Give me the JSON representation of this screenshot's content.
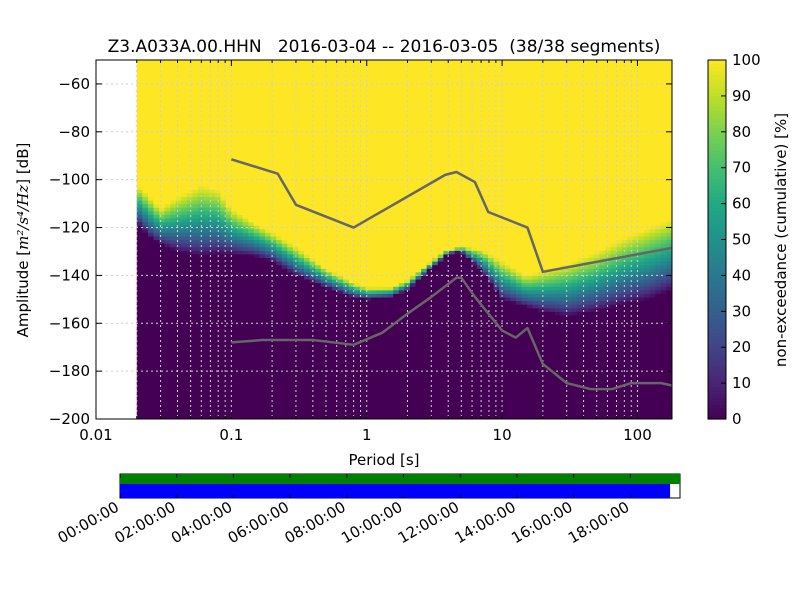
{
  "chart_data": {
    "type": "heatmap",
    "title": "Z3.A033A.00.HHN   2016-03-04 -- 2016-03-05  (38/38 segments)",
    "xlabel": "Period [s]",
    "ylabel_prefix": "Amplitude [",
    "ylabel_math": "m²/s⁴/Hz",
    "ylabel_suffix": "] [dB]",
    "x_scale": "log",
    "xlim": [
      0.01,
      180
    ],
    "ylim": [
      -200,
      -50
    ],
    "x_ticks": [
      {
        "value": 0.01,
        "label": "0.01"
      },
      {
        "value": 0.1,
        "label": "0.1"
      },
      {
        "value": 1,
        "label": "1"
      },
      {
        "value": 10,
        "label": "10"
      },
      {
        "value": 100,
        "label": "100"
      }
    ],
    "y_ticks": [
      {
        "value": -60,
        "label": "−60"
      },
      {
        "value": -80,
        "label": "−80"
      },
      {
        "value": -100,
        "label": "−100"
      },
      {
        "value": -120,
        "label": "−120"
      },
      {
        "value": -140,
        "label": "−140"
      },
      {
        "value": -160,
        "label": "−160"
      },
      {
        "value": -180,
        "label": "−180"
      },
      {
        "value": -200,
        "label": "−200"
      }
    ],
    "grid": true,
    "data_period_start": 0.02,
    "colorbar": {
      "label": "non-exceedance (cumulative) [%]",
      "range": [
        0,
        100
      ],
      "ticks": [
        {
          "value": 0,
          "label": "0"
        },
        {
          "value": 10,
          "label": "10"
        },
        {
          "value": 20,
          "label": "20"
        },
        {
          "value": 30,
          "label": "30"
        },
        {
          "value": 40,
          "label": "40"
        },
        {
          "value": 50,
          "label": "50"
        },
        {
          "value": 60,
          "label": "60"
        },
        {
          "value": 70,
          "label": "70"
        },
        {
          "value": 80,
          "label": "80"
        },
        {
          "value": 90,
          "label": "90"
        },
        {
          "value": 100,
          "label": "100"
        }
      ],
      "colors": [
        "#440154",
        "#482475",
        "#414487",
        "#355f8d",
        "#2a788e",
        "#21918c",
        "#22a884",
        "#44bf70",
        "#7ad151",
        "#bddf26",
        "#fde725"
      ]
    },
    "psd_bounds": [
      {
        "x": 0.02,
        "low": -118,
        "high": -102
      },
      {
        "x": 0.025,
        "low": -124,
        "high": -107
      },
      {
        "x": 0.03,
        "low": -127,
        "high": -112
      },
      {
        "x": 0.04,
        "low": -130,
        "high": -107
      },
      {
        "x": 0.06,
        "low": -132,
        "high": -102
      },
      {
        "x": 0.08,
        "low": -131,
        "high": -104
      },
      {
        "x": 0.1,
        "low": -131,
        "high": -112
      },
      {
        "x": 0.15,
        "low": -132,
        "high": -118
      },
      {
        "x": 0.2,
        "low": -134,
        "high": -122
      },
      {
        "x": 0.3,
        "low": -140,
        "high": -128
      },
      {
        "x": 0.5,
        "low": -145,
        "high": -137
      },
      {
        "x": 0.8,
        "low": -149,
        "high": -143
      },
      {
        "x": 1,
        "low": -150,
        "high": -145
      },
      {
        "x": 1.5,
        "low": -149,
        "high": -145
      },
      {
        "x": 2,
        "low": -146,
        "high": -142
      },
      {
        "x": 3,
        "low": -137,
        "high": -134
      },
      {
        "x": 4,
        "low": -131,
        "high": -129
      },
      {
        "x": 5,
        "low": -130,
        "high": -128
      },
      {
        "x": 7,
        "low": -138,
        "high": -129
      },
      {
        "x": 10,
        "low": -150,
        "high": -134
      },
      {
        "x": 15,
        "low": -153,
        "high": -140
      },
      {
        "x": 20,
        "low": -155,
        "high": -138
      },
      {
        "x": 30,
        "low": -157,
        "high": -135
      },
      {
        "x": 50,
        "low": -155,
        "high": -130
      },
      {
        "x": 80,
        "low": -152,
        "high": -124
      },
      {
        "x": 120,
        "low": -150,
        "high": -120
      },
      {
        "x": 180,
        "low": -146,
        "high": -116
      }
    ],
    "series": [
      {
        "values": [
          [
            0.1,
            -91.5
          ],
          [
            0.22,
            -97.5
          ],
          [
            0.3,
            -110.5
          ],
          [
            0.8,
            -120
          ],
          [
            3.8,
            -98
          ],
          [
            4.6,
            -96.8
          ],
          [
            6.3,
            -101
          ],
          [
            7.9,
            -113.5
          ],
          [
            15.4,
            -120
          ],
          [
            20,
            -138.5
          ],
          [
            180,
            -128.5
          ]
        ]
      },
      {
        "values": [
          [
            0.1,
            -168
          ],
          [
            0.17,
            -167
          ],
          [
            0.4,
            -167
          ],
          [
            0.8,
            -169
          ],
          [
            1.3,
            -164
          ],
          [
            2.0,
            -156
          ],
          [
            3.0,
            -149
          ],
          [
            4.6,
            -141
          ],
          [
            5.0,
            -141
          ],
          [
            6.3,
            -149
          ],
          [
            10,
            -163
          ],
          [
            12.6,
            -166
          ],
          [
            15.4,
            -162
          ],
          [
            20,
            -177
          ],
          [
            30,
            -185
          ],
          [
            45,
            -187.5
          ],
          [
            65,
            -187.5
          ],
          [
            90,
            -185
          ],
          [
            150,
            -185
          ],
          [
            180,
            -186
          ]
        ]
      }
    ],
    "timeline": {
      "tick_labels": [
        "00:00:00",
        "02:00:00",
        "04:00:00",
        "06:00:00",
        "08:00:00",
        "10:00:00",
        "12:00:00",
        "14:00:00",
        "16:00:00",
        "18:00:00"
      ],
      "tick_hours": [
        0,
        2,
        4,
        6,
        8,
        10,
        12,
        14,
        16,
        18
      ],
      "range_hours": [
        0,
        19.75
      ],
      "data_available_hours": [
        0,
        19.75
      ],
      "psd_segments_hours": [
        0,
        19.4
      ],
      "colors": {
        "data": "#008000",
        "segments": "#0000ff"
      }
    }
  }
}
